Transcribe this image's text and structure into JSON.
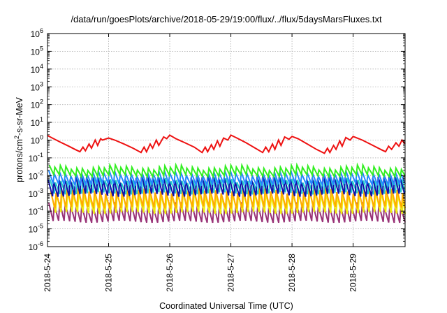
{
  "chart_data": {
    "type": "line",
    "title": "/data/run/goesPlots/archive/2018-05-29/19:00/flux/../flux/5daysMarsFluxes.txt",
    "xlabel": "Coordinated Universal Time (UTC)",
    "ylabel": {
      "base": "protons/cm",
      "sup": "2",
      "rest": "-s-sr-MeV"
    },
    "x_ticks": [
      "2018-5-24",
      "2018-5-25",
      "2018-5-26",
      "2018-5-27",
      "2018-5-28",
      "2018-5-29"
    ],
    "xlim_days": [
      0,
      5.85
    ],
    "y_scale": "log",
    "ylim": [
      1e-06,
      1000000.0
    ],
    "y_ticks": [
      {
        "base": "10",
        "exp": "-6"
      },
      {
        "base": "10",
        "exp": "-5"
      },
      {
        "base": "10",
        "exp": "-4"
      },
      {
        "base": "10",
        "exp": "-3"
      },
      {
        "base": "10",
        "exp": "-2"
      },
      {
        "base": "10",
        "exp": "-1"
      },
      {
        "base": "10",
        "exp": "0"
      },
      {
        "base": "10",
        "exp": "1"
      },
      {
        "base": "10",
        "exp": "2"
      },
      {
        "base": "10",
        "exp": "3"
      },
      {
        "base": "10",
        "exp": "4"
      },
      {
        "base": "10",
        "exp": "5"
      },
      {
        "base": "10",
        "exp": "6"
      }
    ],
    "grid": true,
    "series": [
      {
        "color": "#ee1111",
        "x": [
          0,
          0.08,
          0.2,
          0.35,
          0.45,
          0.53,
          0.58,
          0.62,
          0.68,
          0.72,
          0.78,
          0.82,
          0.87,
          0.9,
          1.0,
          1.1,
          1.25,
          1.4,
          1.53,
          1.58,
          1.62,
          1.68,
          1.72,
          1.78,
          1.82,
          1.9,
          1.95,
          2.0,
          2.1,
          2.25,
          2.4,
          2.53,
          2.58,
          2.62,
          2.68,
          2.72,
          2.78,
          2.82,
          2.88,
          2.95,
          3.0,
          3.1,
          3.25,
          3.4,
          3.52,
          3.57,
          3.62,
          3.68,
          3.72,
          3.78,
          3.82,
          3.88,
          3.95,
          4.0,
          4.1,
          4.25,
          4.4,
          4.53,
          4.58,
          4.62,
          4.68,
          4.72,
          4.78,
          4.82,
          4.88,
          4.95,
          5.0,
          5.15,
          5.3,
          5.45,
          5.53,
          5.58,
          5.63,
          5.7,
          5.75,
          5.8,
          5.85
        ],
        "y": [
          1.8,
          1.3,
          0.8,
          0.45,
          0.3,
          0.22,
          0.4,
          0.25,
          0.6,
          0.35,
          1.0,
          0.5,
          1.2,
          1.0,
          1.3,
          1.0,
          0.6,
          0.35,
          0.2,
          0.4,
          0.22,
          0.6,
          0.35,
          1.0,
          0.5,
          1.5,
          1.2,
          1.9,
          1.2,
          0.7,
          0.4,
          0.2,
          0.4,
          0.22,
          0.55,
          0.3,
          0.9,
          0.45,
          1.3,
          1.0,
          1.9,
          1.3,
          0.7,
          0.35,
          0.2,
          0.4,
          0.22,
          0.6,
          0.3,
          1.0,
          0.5,
          1.5,
          1.1,
          1.6,
          1.2,
          0.6,
          0.3,
          0.18,
          0.35,
          0.2,
          0.5,
          0.3,
          0.9,
          0.45,
          1.4,
          1.0,
          1.6,
          1.0,
          0.55,
          0.3,
          0.22,
          0.45,
          0.3,
          0.7,
          0.45,
          1.0,
          0.6
        ]
      },
      {
        "color": "#33ee22",
        "fine": true,
        "start": 0.03,
        "step": 0.09,
        "peak_log": -1.5,
        "trough_log": -2.0,
        "peak_amp": 0.1
      },
      {
        "color": "#2288ff",
        "fine": true,
        "start": 0.02,
        "step": 0.09,
        "peak_log": -1.8,
        "trough_log": -2.5,
        "peak_amp": 0.1
      },
      {
        "color": "#22cccc",
        "fine": true,
        "start": 0.04,
        "step": 0.09,
        "peak_log": -2.2,
        "trough_log": -3.0,
        "peak_amp": 0.1
      },
      {
        "color": "#1111aa",
        "fine": true,
        "start": 0.01,
        "step": 0.09,
        "peak_log": -2.1,
        "trough_log": -3.1,
        "peak_amp": 0.15
      },
      {
        "color": "#ffaa00",
        "fine": true,
        "start": 0.05,
        "step": 0.09,
        "peak_log": -2.8,
        "trough_log": -3.8,
        "peak_amp": 0.1
      },
      {
        "color": "#eeee11",
        "fine": true,
        "start": 0.06,
        "step": 0.09,
        "peak_log": -3.0,
        "trough_log": -4.1,
        "peak_amp": 0.1
      },
      {
        "color": "#993377",
        "fine": true,
        "start": 0.02,
        "step": 0.09,
        "peak_log": -3.6,
        "trough_log": -4.6,
        "peak_amp": 0.1
      }
    ]
  }
}
